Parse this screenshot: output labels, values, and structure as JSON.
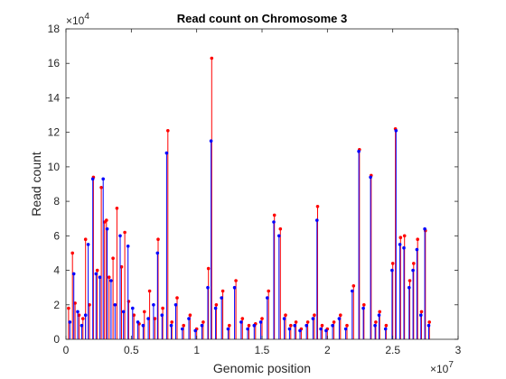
{
  "chart_data": {
    "type": "line",
    "title": "Read count on Chromosome 3",
    "xlabel": "Genomic position",
    "ylabel": "Read count",
    "xlim": [
      0,
      30000000
    ],
    "ylim": [
      0,
      180000
    ],
    "x_ticks": [
      0,
      5000000,
      10000000,
      15000000,
      20000000,
      25000000,
      30000000
    ],
    "x_tick_labels": [
      "0",
      "0.5",
      "1",
      "1.5",
      "2",
      "2.5",
      "3"
    ],
    "x_exponent_base": "×10",
    "x_exponent_power": "7",
    "y_ticks": [
      0,
      20000,
      40000,
      60000,
      80000,
      100000,
      120000,
      140000,
      160000,
      180000
    ],
    "y_tick_labels": [
      "0",
      "2",
      "4",
      "6",
      "8",
      "10",
      "12",
      "14",
      "16",
      "18"
    ],
    "y_exponent_base": "×10",
    "y_exponent_power": "4",
    "grid": false,
    "colors": {
      "series_a": "#ff0000",
      "series_b": "#0000ff",
      "axes": "#262626"
    },
    "series": [
      {
        "color": "#ff0000",
        "marker": "dot",
        "x": [
          200000,
          500000,
          700000,
          1000000,
          1300000,
          1500000,
          1800000,
          2100000,
          2400000,
          2700000,
          2950000,
          3100000,
          3300000,
          3600000,
          3900000,
          4250000,
          4500000,
          4800000,
          5200000,
          5600000,
          6000000,
          6400000,
          6800000,
          7050000,
          7400000,
          7800000,
          8100000,
          8500000,
          9000000,
          9500000,
          10000000,
          10500000,
          10900000,
          11150000,
          11500000,
          12000000,
          12500000,
          13000000,
          13500000,
          14000000,
          14500000,
          15000000,
          15500000,
          15950000,
          16400000,
          16800000,
          17200000,
          17600000,
          18000000,
          18500000,
          19000000,
          19250000,
          19600000,
          20000000,
          20500000,
          21000000,
          21500000,
          22000000,
          22450000,
          22800000,
          23350000,
          23700000,
          24000000,
          24500000,
          25000000,
          25200000,
          25600000,
          25900000,
          26300000,
          26600000,
          26900000,
          27200000,
          27500000,
          27800000
        ],
        "y": [
          18000,
          50000,
          21000,
          14000,
          12000,
          58000,
          20000,
          94000,
          40000,
          88000,
          68000,
          69000,
          36000,
          47000,
          76000,
          42000,
          62000,
          22000,
          14000,
          9000,
          16000,
          28000,
          12000,
          58000,
          18000,
          121000,
          10000,
          24000,
          8000,
          14000,
          6000,
          10000,
          41000,
          163000,
          20000,
          28000,
          8000,
          34000,
          12000,
          8000,
          9000,
          12000,
          28000,
          72000,
          64000,
          14000,
          8000,
          10000,
          6000,
          10000,
          14000,
          77000,
          8000,
          6000,
          10000,
          14000,
          8000,
          31000,
          110000,
          20000,
          95000,
          10000,
          16000,
          8000,
          44000,
          122000,
          59000,
          60000,
          34000,
          44000,
          58000,
          16000,
          63000,
          10000
        ]
      },
      {
        "color": "#0000ff",
        "marker": "dot",
        "x": [
          300000,
          600000,
          900000,
          1200000,
          1500000,
          1700000,
          2050000,
          2300000,
          2600000,
          2850000,
          3150000,
          3450000,
          3750000,
          4150000,
          4400000,
          4750000,
          5100000,
          5500000,
          5900000,
          6300000,
          6700000,
          7000000,
          7350000,
          7700000,
          8050000,
          8400000,
          8900000,
          9400000,
          9900000,
          10400000,
          10850000,
          11100000,
          11450000,
          11900000,
          12400000,
          12900000,
          13400000,
          13900000,
          14400000,
          14900000,
          15400000,
          15900000,
          16300000,
          16700000,
          17100000,
          17500000,
          17900000,
          18400000,
          18900000,
          19200000,
          19500000,
          19900000,
          20400000,
          20900000,
          21400000,
          21900000,
          22400000,
          22750000,
          23300000,
          23650000,
          23950000,
          24450000,
          24950000,
          25250000,
          25550000,
          25850000,
          26250000,
          26550000,
          26850000,
          27150000,
          27450000,
          27750000
        ],
        "y": [
          10000,
          38000,
          16000,
          8000,
          14000,
          55000,
          93000,
          38000,
          36000,
          93000,
          64000,
          34000,
          20000,
          60000,
          16000,
          54000,
          18000,
          10000,
          8000,
          12000,
          20000,
          50000,
          14000,
          108000,
          8000,
          20000,
          6000,
          12000,
          5000,
          8000,
          30000,
          115000,
          18000,
          24000,
          6000,
          30000,
          10000,
          6000,
          8000,
          10000,
          24000,
          68000,
          60000,
          12000,
          6000,
          8000,
          5000,
          8000,
          12000,
          69000,
          6000,
          5000,
          8000,
          12000,
          6000,
          28000,
          109000,
          18000,
          94000,
          8000,
          14000,
          6000,
          40000,
          121000,
          55000,
          53000,
          30000,
          40000,
          52000,
          14000,
          64000,
          8000
        ]
      }
    ]
  }
}
